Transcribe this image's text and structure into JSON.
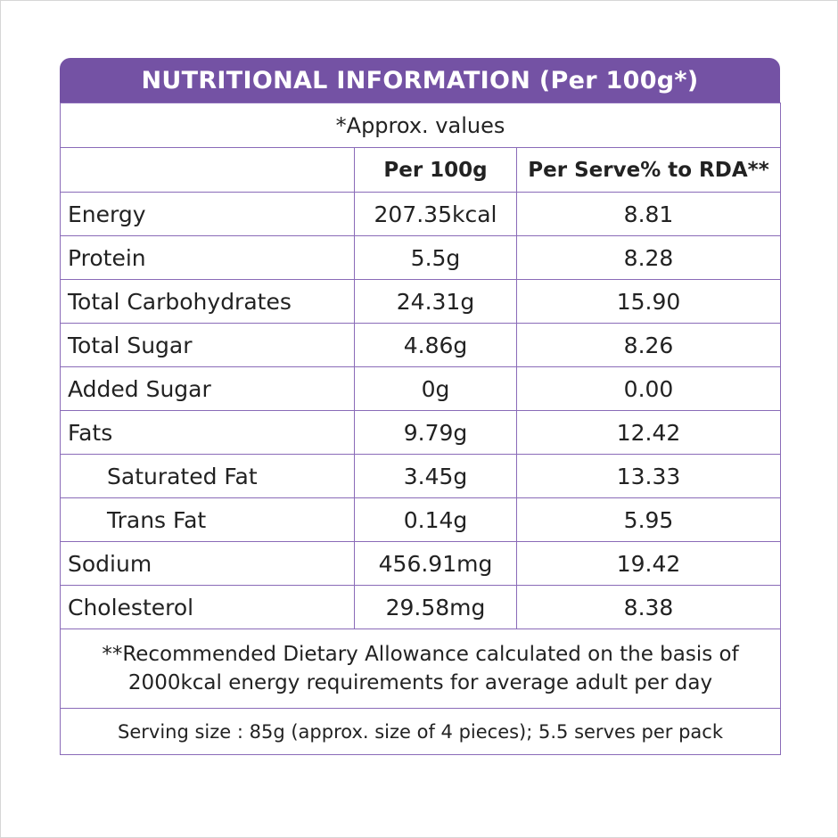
{
  "header": {
    "title": "NUTRITIONAL INFORMATION (Per 100g*)"
  },
  "note": "*Approx. values",
  "table": {
    "columns": [
      "Per 100g",
      "Per Serve% to RDA**"
    ],
    "rows": [
      [
        "Energy",
        "207.35kcal",
        "8.81"
      ],
      [
        "Protein",
        "5.5g",
        "8.28"
      ],
      [
        "Total Carbohydrates",
        "24.31g",
        "15.90"
      ],
      [
        "Total Sugar",
        "4.86g",
        "8.26"
      ],
      [
        "Added Sugar",
        "0g",
        "0.00"
      ],
      [
        "Fats",
        "9.79g",
        "12.42"
      ],
      [
        "Saturated Fat",
        "3.45g",
        "13.33"
      ],
      [
        "Trans Fat",
        "0.14g",
        "5.95"
      ],
      [
        "Sodium",
        "456.91mg",
        "19.42"
      ],
      [
        "Cholesterol",
        "29.58mg",
        "8.38"
      ]
    ]
  },
  "footnote": "**Recommended Dietary Allowance calculated on the basis of 2000kcal energy requirements for average adult per day",
  "serving": "Serving size : 85g (approx. size of 4 pieces); 5.5 serves per pack"
}
